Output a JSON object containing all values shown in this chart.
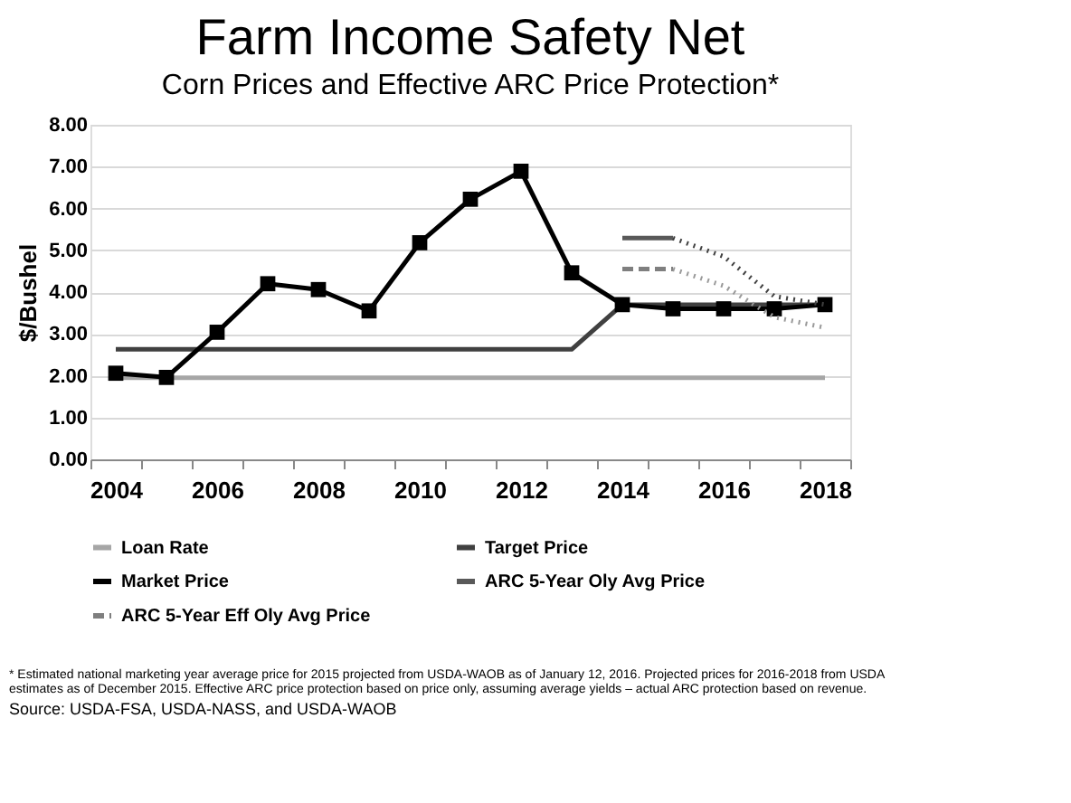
{
  "chart_data": {
    "type": "line",
    "title": "Farm Income Safety Net",
    "subtitle": "Corn Prices and Effective ARC Price Protection*",
    "ylabel": "$/Bushel",
    "categories": [
      "2004",
      null,
      "2006",
      null,
      "2008",
      null,
      "2010",
      null,
      "2012",
      null,
      "2014",
      null,
      "2016",
      null,
      "2018"
    ],
    "series": [
      {
        "name": "Loan Rate",
        "color": "#a6a6a6",
        "line_style": "solid",
        "marker": "none",
        "values": [
          1.95,
          1.95,
          1.95,
          1.95,
          1.95,
          1.95,
          1.95,
          1.95,
          1.95,
          1.95,
          1.95,
          1.95,
          1.95,
          1.95,
          1.95
        ]
      },
      {
        "name": "Target Price",
        "color": "#404040",
        "line_style": "solid",
        "marker": "none",
        "values": [
          2.63,
          2.63,
          2.63,
          2.63,
          2.63,
          2.63,
          2.63,
          2.63,
          2.63,
          2.63,
          3.7,
          3.7,
          3.7,
          3.7,
          3.7
        ]
      },
      {
        "name": "Market Price",
        "color": "#000000",
        "line_style": "solid",
        "marker": "square",
        "values": [
          2.06,
          1.96,
          3.04,
          4.2,
          4.06,
          3.55,
          5.18,
          6.22,
          6.89,
          4.46,
          3.7,
          3.6,
          3.6,
          3.6,
          3.7
        ]
      },
      {
        "name": "ARC 5-Year Oly Avg Price",
        "color": "#595959",
        "line_style": "solid",
        "marker": "none",
        "values": [
          null,
          null,
          null,
          null,
          null,
          null,
          null,
          null,
          null,
          null,
          5.29,
          5.29,
          null,
          null,
          null
        ]
      },
      {
        "name": "ARC 5-Year Eff Oly Avg Price",
        "color": "#7f7f7f",
        "line_style": "dashed",
        "marker": "none",
        "values": [
          null,
          null,
          null,
          null,
          null,
          null,
          null,
          null,
          null,
          null,
          4.55,
          4.55,
          null,
          null,
          null
        ]
      },
      {
        "color": "#404040",
        "line_style": "dotted",
        "marker": "none",
        "values": [
          null,
          null,
          null,
          null,
          null,
          null,
          null,
          null,
          null,
          null,
          null,
          5.29,
          4.85,
          3.9,
          3.7
        ]
      },
      {
        "color": "#999999",
        "line_style": "dotted",
        "marker": "none",
        "values": [
          null,
          null,
          null,
          null,
          null,
          null,
          null,
          null,
          null,
          null,
          null,
          4.55,
          4.15,
          3.4,
          3.15
        ]
      }
    ],
    "ylim": [
      0,
      8
    ],
    "yticks": [
      {
        "value": 0,
        "label": "0.00"
      },
      {
        "value": 1,
        "label": "1.00"
      },
      {
        "value": 2,
        "label": "2.00"
      },
      {
        "value": 3,
        "label": "3.00"
      },
      {
        "value": 4,
        "label": "4.00"
      },
      {
        "value": 5,
        "label": "5.00"
      },
      {
        "value": 6,
        "label": "6.00"
      },
      {
        "value": 7,
        "label": "7.00"
      },
      {
        "value": 8,
        "label": "8.00"
      }
    ],
    "grid": "y",
    "legend": "bottom",
    "annotations": [
      "* Estimated national marketing year average price for 2015 projected from USDA-WAOB as of January 12, 2016. Projected prices for 2016-2018 from USDA estimates as of December 2015. Effective ARC price protection based on price only, assuming average yields – actual ARC protection based on revenue.",
      "Source: USDA-FSA, USDA-NASS, and USDA-WAOB"
    ]
  }
}
